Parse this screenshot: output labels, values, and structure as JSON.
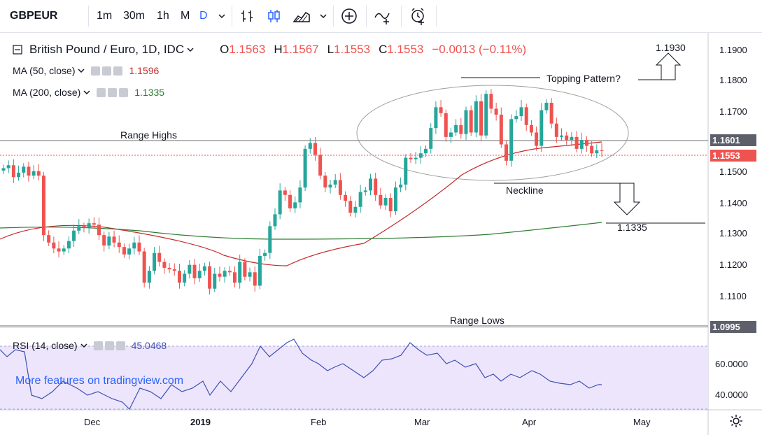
{
  "toolbar": {
    "symbol": "GBPEUR",
    "intervals": [
      "1m",
      "30m",
      "1h",
      "M",
      "D"
    ],
    "active_interval": "D",
    "icons": [
      "chevron-down-icon",
      "bar-chart-icon",
      "candlestick-icon",
      "area-chart-icon",
      "chevron-down-icon",
      "add-indicator-icon",
      "compare-icon",
      "alert-icon"
    ]
  },
  "legend": {
    "main_title": "British Pound / Euro, 1D, IDC",
    "o_label": "O",
    "o_value": "1.1563",
    "h_label": "H",
    "h_value": "1.1567",
    "l_label": "L",
    "l_value": "1.1553",
    "c_label": "C",
    "c_value": "1.1553",
    "change": "−0.0013 (−0.11%)",
    "ma50_label": "MA (50, close)",
    "ma50_value": "1.1596",
    "ma200_label": "MA (200, close)",
    "ma200_value": "1.1335",
    "rsi_label": "RSI (14, close)",
    "rsi_value": "45.0468"
  },
  "annotations": {
    "range_highs": "Range Highs",
    "range_lows": "Range Lows",
    "topping": "Topping Pattern?",
    "neckline": "Neckline",
    "target_down": "1.1335",
    "target_up": "1.1930"
  },
  "watermark": "More features on tradingview.com",
  "price_axis": {
    "labels": [
      "1.1900",
      "1.1800",
      "1.1700",
      "1.1500",
      "1.1400",
      "1.1300",
      "1.1200",
      "1.1100"
    ],
    "tag_range_high": "1.1601",
    "tag_last": "1.1553",
    "tag_range_low": "1.0995"
  },
  "rsi_axis": {
    "labels": [
      "60.0000",
      "40.0000"
    ]
  },
  "time_axis": {
    "labels": [
      "Dec",
      "2019",
      "Feb",
      "Mar",
      "Apr",
      "May"
    ]
  },
  "colors": {
    "up": "#26a69a",
    "down": "#ef5350",
    "ma50": "#c62828",
    "ma200": "#2e7d32",
    "rsi": "#3f51b5",
    "rsi_band": "#ede5fb",
    "accent": "#2962ff"
  },
  "chart_data": {
    "type": "candlestick",
    "symbol": "GBPEUR",
    "timeframe": "1D",
    "ylim": [
      1.096,
      1.195
    ],
    "candles_close": [
      1.1495,
      1.1505,
      1.1465,
      1.148,
      1.15,
      1.147,
      1.1485,
      1.147,
      1.127,
      1.1245,
      1.1225,
      1.1215,
      1.1225,
      1.125,
      1.1285,
      1.13,
      1.1295,
      1.131,
      1.1305,
      1.127,
      1.1235,
      1.1265,
      1.1245,
      1.123,
      1.1205,
      1.1225,
      1.1245,
      1.1215,
      1.111,
      1.115,
      1.121,
      1.118,
      1.116,
      1.1155,
      1.115,
      1.111,
      1.114,
      1.117,
      1.1125,
      1.115,
      1.1165,
      1.109,
      1.114,
      1.113,
      1.115,
      1.1145,
      1.111,
      1.118,
      1.113,
      1.1145,
      1.11,
      1.12,
      1.121,
      1.13,
      1.134,
      1.142,
      1.1405,
      1.136,
      1.138,
      1.143,
      1.156,
      1.158,
      1.154,
      1.147,
      1.143,
      1.144,
      1.1455,
      1.1405,
      1.1385,
      1.1345,
      1.1365,
      1.1415,
      1.142,
      1.146,
      1.1405,
      1.137,
      1.1395,
      1.135,
      1.143,
      1.144,
      1.153,
      1.1525,
      1.153,
      1.1545,
      1.156,
      1.163,
      1.17,
      1.168,
      1.16,
      1.1615,
      1.164,
      1.161,
      1.169,
      1.1615,
      1.172,
      1.1605,
      1.1745,
      1.1695,
      1.1675,
      1.1575,
      1.152,
      1.166,
      1.167,
      1.17,
      1.164,
      1.1615,
      1.157,
      1.169,
      1.1715,
      1.1645,
      1.16,
      1.1605,
      1.159,
      1.16,
      1.156,
      1.159,
      1.157,
      1.1545,
      1.1555,
      1.1553
    ],
    "range_high": 1.1601,
    "range_low": 1.0995,
    "neckline": 1.1465,
    "ma50_last": 1.1596,
    "ma200_last": 1.1335,
    "rsi_last": 45.0468
  }
}
